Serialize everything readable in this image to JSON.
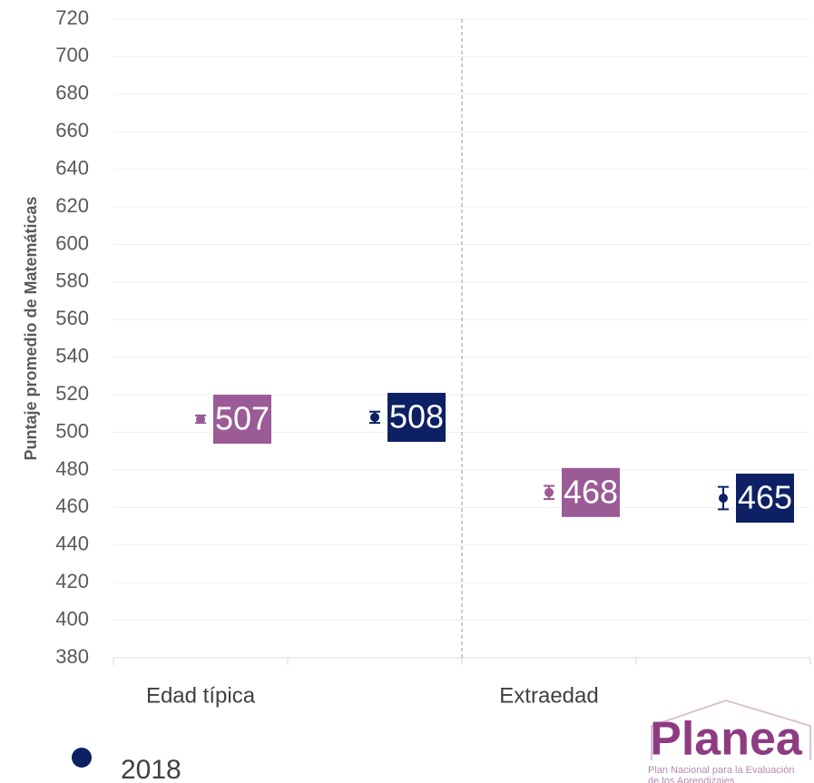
{
  "chart_data": {
    "type": "errordot",
    "y_label": "Puntaje promedio de Matemáticas",
    "categories": [
      "Edad típica",
      "Extraedad"
    ],
    "series": [
      {
        "color": "#9b5b96",
        "values": [
          507,
          468
        ],
        "errors": [
          2,
          3.5
        ]
      },
      {
        "name": "2018",
        "color": "#0d2063",
        "values": [
          508,
          465
        ],
        "errors": [
          3,
          6
        ]
      }
    ],
    "ylim": [
      380,
      720
    ],
    "yticks": [
      380,
      400,
      420,
      440,
      460,
      480,
      500,
      520,
      540,
      560,
      580,
      600,
      620,
      640,
      660,
      680,
      700,
      720
    ],
    "grid": true
  },
  "logo": {
    "title": "Planea",
    "subtitle": [
      "Plan Nacional para la Evaluación",
      "de los Aprendizajes"
    ]
  }
}
